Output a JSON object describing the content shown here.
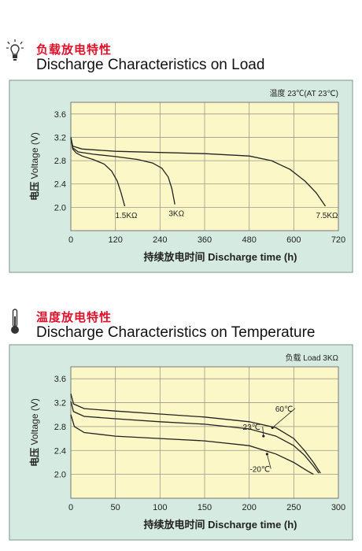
{
  "sections": [
    {
      "title_cn": "负载放电特性",
      "title_en": "Discharge Characteristics on Load",
      "icon": "lightbulb-icon"
    },
    {
      "title_cn": "温度放电特性",
      "title_en": "Discharge Characteristics on Temperature",
      "icon": "thermometer-icon"
    }
  ],
  "colors": {
    "panel_bg": "#d5ebe1",
    "plot_bg": "#fcf7c6",
    "grid": "#9a9a8a",
    "curve": "#222222",
    "title_cn": "#e0102a"
  },
  "chart_data": [
    {
      "type": "line",
      "note": "温度 23℃(AT 23℃)",
      "ylabel_cn": "电压",
      "ylabel": "Voltage (V)",
      "xlabel_cn": "持续放电时间",
      "xlabel": "Discharge time (h)",
      "xlim": [
        0,
        720
      ],
      "ylim": [
        1.6,
        3.8
      ],
      "x_ticks": [
        0,
        120,
        240,
        360,
        480,
        600,
        720
      ],
      "y_ticks": [
        2.0,
        2.4,
        2.8,
        3.2,
        3.6
      ],
      "grid": true,
      "series": [
        {
          "name": "1.5KΩ",
          "points": [
            [
              0,
              3.2
            ],
            [
              5,
              3.0
            ],
            [
              15,
              2.93
            ],
            [
              30,
              2.88
            ],
            [
              60,
              2.82
            ],
            [
              90,
              2.74
            ],
            [
              110,
              2.62
            ],
            [
              125,
              2.45
            ],
            [
              135,
              2.25
            ],
            [
              145,
              2.02
            ]
          ]
        },
        {
          "name": "3KΩ",
          "points": [
            [
              0,
              3.2
            ],
            [
              5,
              3.02
            ],
            [
              20,
              2.95
            ],
            [
              60,
              2.91
            ],
            [
              120,
              2.87
            ],
            [
              180,
              2.82
            ],
            [
              220,
              2.76
            ],
            [
              245,
              2.67
            ],
            [
              262,
              2.52
            ],
            [
              272,
              2.32
            ],
            [
              280,
              2.05
            ]
          ]
        },
        {
          "name": "7.5KΩ",
          "points": [
            [
              0,
              3.2
            ],
            [
              5,
              3.05
            ],
            [
              30,
              3.0
            ],
            [
              120,
              2.96
            ],
            [
              240,
              2.94
            ],
            [
              360,
              2.92
            ],
            [
              480,
              2.88
            ],
            [
              540,
              2.8
            ],
            [
              590,
              2.65
            ],
            [
              630,
              2.45
            ],
            [
              660,
              2.25
            ],
            [
              685,
              2.02
            ]
          ]
        }
      ]
    },
    {
      "type": "line",
      "note": "负载  Load 3KΩ",
      "ylabel_cn": "电压",
      "ylabel": "Voltage (V)",
      "xlabel_cn": "持续放电时间",
      "xlabel": "Discharge time (h)",
      "xlim": [
        0,
        300
      ],
      "ylim": [
        1.6,
        3.8
      ],
      "x_ticks": [
        0,
        50,
        100,
        150,
        200,
        250,
        300
      ],
      "y_ticks": [
        2.0,
        2.4,
        2.8,
        3.2,
        3.6
      ],
      "grid": true,
      "series": [
        {
          "name": "60℃",
          "points": [
            [
              0,
              3.35
            ],
            [
              3,
              3.18
            ],
            [
              15,
              3.1
            ],
            [
              50,
              3.06
            ],
            [
              100,
              3.01
            ],
            [
              150,
              2.96
            ],
            [
              200,
              2.88
            ],
            [
              230,
              2.78
            ],
            [
              250,
              2.6
            ],
            [
              262,
              2.4
            ],
            [
              272,
              2.2
            ],
            [
              280,
              2.02
            ]
          ]
        },
        {
          "name": "23℃",
          "points": [
            [
              0,
              3.22
            ],
            [
              3,
              3.05
            ],
            [
              15,
              2.97
            ],
            [
              50,
              2.93
            ],
            [
              100,
              2.88
            ],
            [
              150,
              2.84
            ],
            [
              200,
              2.76
            ],
            [
              230,
              2.64
            ],
            [
              250,
              2.48
            ],
            [
              262,
              2.32
            ],
            [
              272,
              2.14
            ],
            [
              278,
              2.02
            ]
          ]
        },
        {
          "name": "-20℃",
          "points": [
            [
              0,
              3.0
            ],
            [
              4,
              2.8
            ],
            [
              15,
              2.7
            ],
            [
              50,
              2.64
            ],
            [
              100,
              2.6
            ],
            [
              150,
              2.56
            ],
            [
              200,
              2.48
            ],
            [
              230,
              2.34
            ],
            [
              250,
              2.2
            ],
            [
              265,
              2.06
            ],
            [
              272,
              2.0
            ]
          ]
        }
      ],
      "annotations": [
        {
          "label": "60℃",
          "at": [
            218,
            2.92
          ]
        },
        {
          "label": "23℃",
          "at": [
            208,
            2.72
          ]
        },
        {
          "label": "-20℃",
          "at": [
            212,
            2.25
          ]
        }
      ]
    }
  ]
}
